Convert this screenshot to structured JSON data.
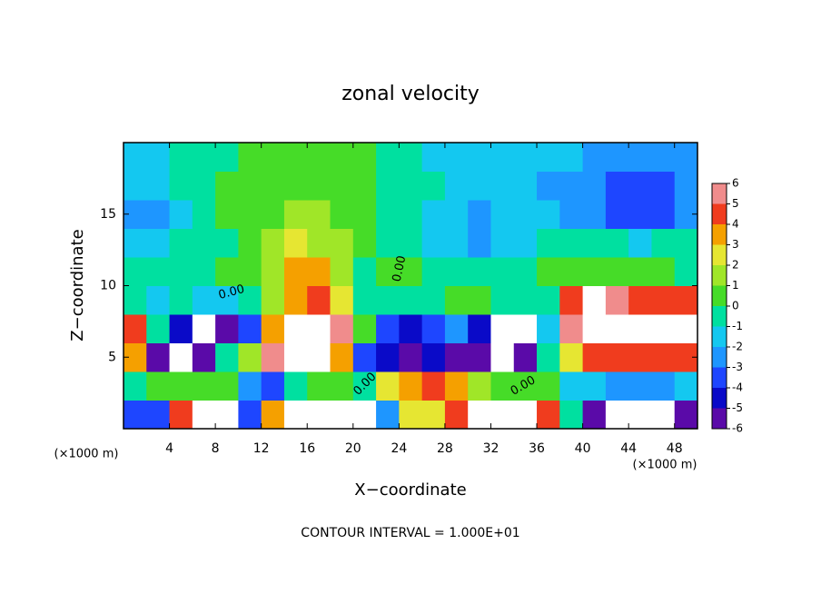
{
  "chart_data": {
    "type": "heatmap",
    "title": "zonal velocity",
    "xlabel": "X−coordinate",
    "ylabel": "Z−coordinate",
    "x_unit_label": "(×1000 m)",
    "y_unit_label": "(×1000 m)",
    "footer": "CONTOUR INTERVAL = 1.000E+01",
    "contour_labels": [
      "0.00",
      "0.00",
      "0.00",
      "0.00"
    ],
    "xlim": [
      0,
      50
    ],
    "ylim": [
      0,
      20
    ],
    "xticks": [
      4,
      8,
      12,
      16,
      20,
      24,
      28,
      32,
      36,
      40,
      44,
      48
    ],
    "yticks": [
      5,
      10,
      15
    ],
    "x": [
      1,
      3,
      5,
      7,
      9,
      11,
      13,
      15,
      17,
      19,
      21,
      23,
      25,
      27,
      29,
      31,
      33,
      35,
      37,
      39,
      41,
      43,
      45,
      47,
      49
    ],
    "z": [
      1,
      3,
      5,
      7,
      9,
      11,
      13,
      15,
      17,
      19
    ],
    "values": [
      [
        -3,
        -3,
        5,
        8,
        8,
        -3,
        4,
        8,
        8,
        7,
        7,
        -2,
        3,
        3,
        5,
        7,
        8,
        8,
        5,
        0,
        -5,
        -8,
        -8,
        -7,
        -5
      ],
      [
        0,
        1,
        1,
        1,
        1,
        -2,
        -3,
        0,
        1,
        1,
        0,
        3,
        4,
        5,
        4,
        2,
        1,
        1,
        1,
        -1,
        -1,
        -2,
        -2,
        -2,
        -1
      ],
      [
        4,
        -5,
        -8,
        -5,
        0,
        2,
        6,
        8,
        8,
        4,
        -3,
        -4,
        -5,
        -4,
        -5,
        -6,
        -8,
        -5,
        0,
        3,
        5,
        5,
        5,
        5,
        5
      ],
      [
        5,
        0,
        -4,
        -8,
        -6,
        -3,
        4,
        7,
        8,
        6,
        1,
        -3,
        -4,
        -3,
        -2,
        -4,
        -8,
        -7,
        -1,
        6,
        8,
        8,
        8,
        8,
        7
      ],
      [
        0,
        -1,
        0,
        -1,
        -1,
        0,
        2,
        4,
        5,
        3,
        0,
        0,
        0,
        0,
        1,
        1,
        0,
        0,
        0,
        5,
        7,
        6,
        5,
        5,
        5
      ],
      [
        -0.5,
        0,
        0,
        0,
        0.5,
        1,
        2,
        4,
        4,
        2,
        0,
        0.5,
        0.5,
        0,
        -0.5,
        -0.5,
        0,
        0,
        0.5,
        1,
        1,
        1,
        0.5,
        0.5,
        0
      ],
      [
        -1,
        -1,
        -0.5,
        0,
        0,
        1,
        2,
        2.5,
        2,
        1.5,
        0.5,
        0,
        -0.5,
        -1,
        -1.5,
        -2,
        -1.5,
        -1,
        -0.5,
        -0.5,
        0,
        -0.5,
        -1,
        -0.5,
        -0.5
      ],
      [
        -2,
        -2,
        -1,
        0,
        0.5,
        0.5,
        1,
        1.5,
        1.5,
        1,
        0.5,
        0,
        -0.5,
        -1,
        -1.5,
        -2,
        -1.5,
        -1.5,
        -1.5,
        -2,
        -2.5,
        -3,
        -3,
        -3,
        -2
      ],
      [
        -1.5,
        -1,
        -0.5,
        0,
        0.5,
        0.5,
        1,
        1,
        1,
        1,
        0.5,
        0,
        -0.5,
        -0.5,
        -1,
        -1,
        -1,
        -1.5,
        -2,
        -2,
        -2.5,
        -3,
        -3.5,
        -3,
        -2
      ],
      [
        -1,
        -1,
        -0.5,
        -0.5,
        0,
        0.5,
        0.5,
        0.5,
        0.5,
        0.5,
        0.5,
        -0.5,
        -0.5,
        -1,
        -1,
        -1,
        -1,
        -1.5,
        -1.5,
        -1.5,
        -2,
        -2,
        -2,
        -2,
        -2
      ]
    ],
    "levels": [
      -6,
      -5,
      -4,
      -3,
      -2,
      -1,
      0,
      1,
      2,
      3,
      4,
      5,
      6
    ],
    "colors": [
      "#5a0aa8",
      "#0a0ac8",
      "#1e46ff",
      "#1e96ff",
      "#14c8f0",
      "#00e0a0",
      "#46dc28",
      "#a0e628",
      "#e6e632",
      "#f5a000",
      "#f03c1e",
      "#f08c8c"
    ],
    "out_of_range_color": "#ffffff"
  }
}
